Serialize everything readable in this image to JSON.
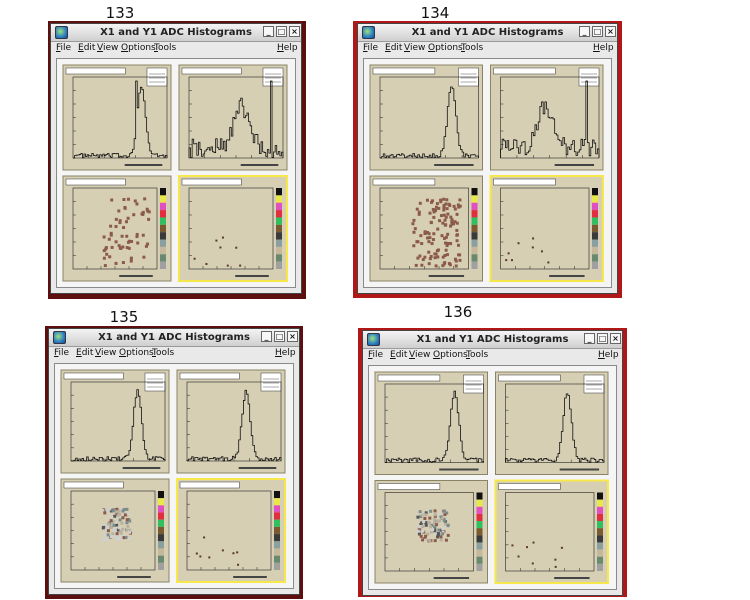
{
  "run_labels": [
    "133",
    "134",
    "135",
    "136"
  ],
  "window": {
    "title": "X1 and Y1 ADC Histograms",
    "menu": [
      "File",
      "Edit",
      "View",
      "Options",
      "Tools"
    ],
    "help": "Help",
    "buttons": {
      "minimize": "_",
      "maximize": "□",
      "close": "×"
    }
  },
  "colors": {
    "pad_fill": "#d6cfb4",
    "histo_line": "#111111",
    "hist2d_cell": "#8b5a4a",
    "highlight": "#f6e84a",
    "frame_dark": "#6e1010",
    "frame_red": "#c01818"
  }
}
